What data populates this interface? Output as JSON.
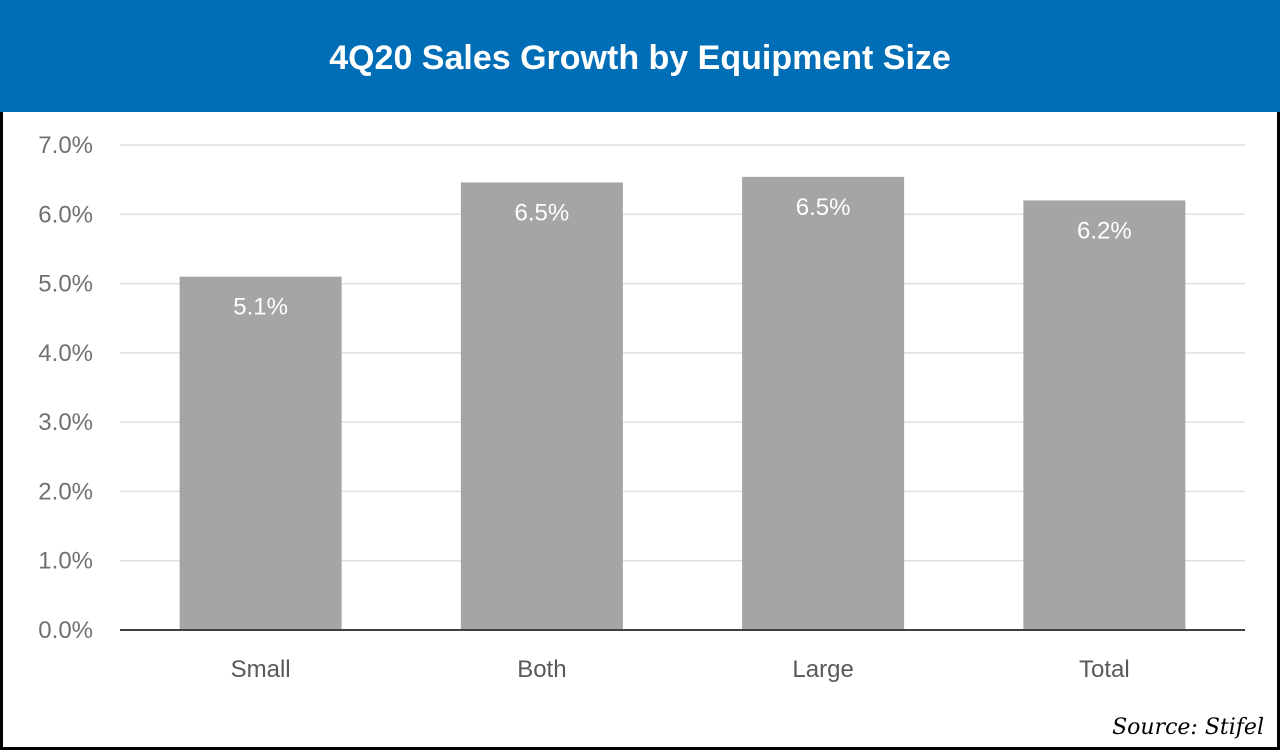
{
  "chart_data": {
    "type": "bar",
    "title": "4Q20 Sales Growth by Equipment Size",
    "categories": [
      "Small",
      "Both",
      "Large",
      "Total"
    ],
    "values": [
      5.1,
      6.46,
      6.54,
      6.2
    ],
    "data_labels": [
      "5.1%",
      "6.5%",
      "6.5%",
      "6.2%"
    ],
    "yticks": [
      "0.0%",
      "1.0%",
      "2.0%",
      "3.0%",
      "4.0%",
      "5.0%",
      "6.0%",
      "7.0%"
    ],
    "ylim": [
      0,
      7
    ],
    "xlabel": "",
    "ylabel": "",
    "grid": true,
    "bar_color": "#a5a5a5",
    "header_color": "#006db7"
  },
  "source": "Source: Stifel"
}
